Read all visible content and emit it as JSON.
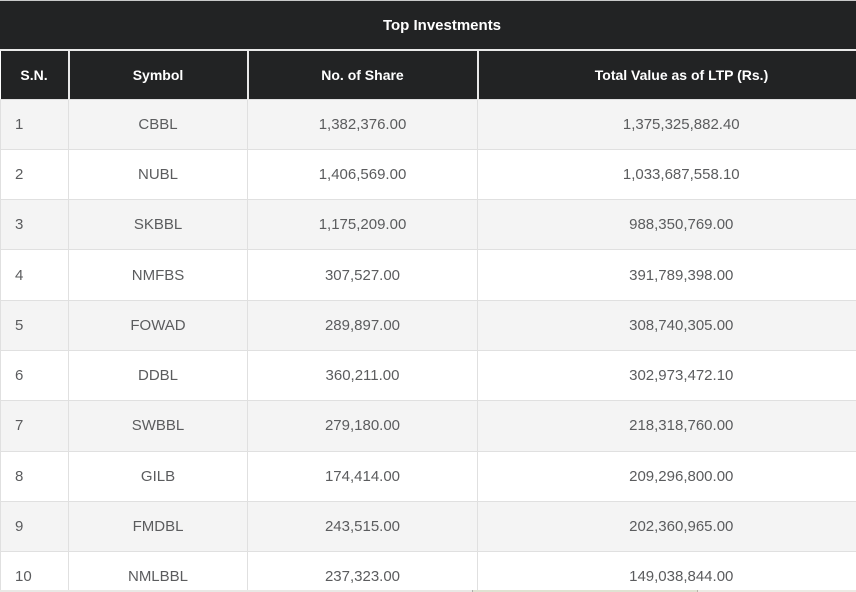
{
  "table": {
    "title": "Top Investments",
    "columns": [
      "S.N.",
      "Symbol",
      "No. of Share",
      "Total Value as of LTP (Rs.)"
    ],
    "rows": [
      {
        "sn": "1",
        "symbol": "CBBL",
        "shares": "1,382,376.00",
        "value": "1,375,325,882.40"
      },
      {
        "sn": "2",
        "symbol": "NUBL",
        "shares": "1,406,569.00",
        "value": "1,033,687,558.10"
      },
      {
        "sn": "3",
        "symbol": "SKBBL",
        "shares": "1,175,209.00",
        "value": "988,350,769.00"
      },
      {
        "sn": "4",
        "symbol": "NMFBS",
        "shares": "307,527.00",
        "value": "391,789,398.00"
      },
      {
        "sn": "5",
        "symbol": "FOWAD",
        "shares": "289,897.00",
        "value": "308,740,305.00"
      },
      {
        "sn": "6",
        "symbol": "DDBL",
        "shares": "360,211.00",
        "value": "302,973,472.10"
      },
      {
        "sn": "7",
        "symbol": "SWBBL",
        "shares": "279,180.00",
        "value": "218,318,760.00"
      },
      {
        "sn": "8",
        "symbol": "GILB",
        "shares": "174,414.00",
        "value": "209,296,800.00"
      },
      {
        "sn": "9",
        "symbol": "FMDBL",
        "shares": "243,515.00",
        "value": "202,360,965.00"
      },
      {
        "sn": "10",
        "symbol": "NMLBBL",
        "shares": "237,323.00",
        "value": "149,038,844.00"
      }
    ]
  },
  "colors": {
    "header_bg": "#222324",
    "header_text": "#ffffff",
    "stripe": "#f4f4f4",
    "row_bg": "#ffffff",
    "border": "#e0e0e0",
    "header_sep": "#e9e9e9",
    "body_text": "#5b5c5e",
    "top_border": "#c9c9c9"
  }
}
